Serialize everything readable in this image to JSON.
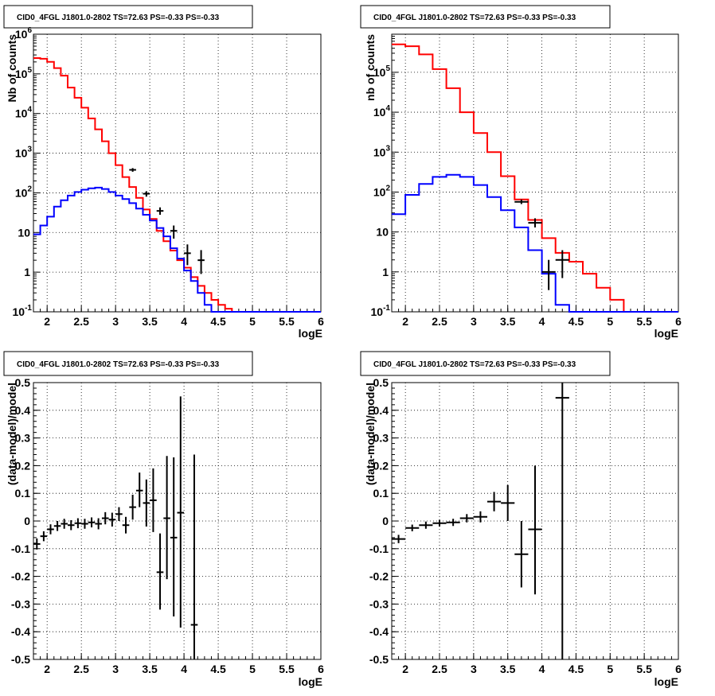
{
  "chart_data": [
    {
      "type": "line",
      "panel": "top-left",
      "title": "CID0_4FGL J1801.0-2802 TS=72.63 PS=-0.33 PS=-0.33",
      "xlabel": "logE",
      "ylabel": "Nb of counts",
      "xlim": [
        1.8,
        6.0
      ],
      "ylim": [
        0.1,
        1000000
      ],
      "yscale": "log",
      "grid": true,
      "xticks": [
        "2",
        "2.5",
        "3",
        "3.5",
        "4",
        "4.5",
        "5",
        "5.5",
        "6"
      ],
      "yticks": [
        {
          "base": "10",
          "exp": "-1",
          "value": 0.1
        },
        {
          "base": "1",
          "exp": "",
          "value": 1
        },
        {
          "base": "10",
          "exp": "",
          "value": 10
        },
        {
          "base": "10",
          "exp": "2",
          "value": 100
        },
        {
          "base": "10",
          "exp": "3",
          "value": 1000
        },
        {
          "base": "10",
          "exp": "4",
          "value": 10000
        },
        {
          "base": "10",
          "exp": "5",
          "value": 100000
        },
        {
          "base": "10",
          "exp": "6",
          "value": 1000000
        }
      ],
      "bin_edges": [
        1.8,
        1.9,
        2.0,
        2.1,
        2.2,
        2.3,
        2.4,
        2.5,
        2.6,
        2.7,
        2.8,
        2.9,
        3.0,
        3.1,
        3.2,
        3.3,
        3.4,
        3.5,
        3.6,
        3.7,
        3.8,
        3.9,
        4.0,
        4.1,
        4.2,
        4.3,
        4.4,
        4.5,
        4.6,
        4.7,
        4.8,
        4.9,
        5.0,
        5.1,
        5.2,
        5.3,
        5.4,
        5.5,
        5.6,
        5.7,
        5.8,
        5.9,
        6.0
      ],
      "series": [
        {
          "color": "#ff0000",
          "values": [
            250000,
            240000,
            200000,
            140000,
            90000,
            45000,
            25000,
            14000,
            7500,
            4000,
            2000,
            1000,
            500,
            250,
            140,
            75,
            38,
            22,
            11,
            6,
            3.5,
            2,
            1.3,
            0.75,
            0.45,
            0.3,
            0.2,
            0.15,
            0.12,
            0.1,
            0.1,
            0.1,
            0.1,
            0.1,
            0.1,
            0.1,
            0.1,
            0.1,
            0.1,
            0.1,
            0.1,
            0.1
          ]
        },
        {
          "color": "#0000ff",
          "values": [
            9,
            15,
            25,
            45,
            65,
            85,
            105,
            120,
            130,
            135,
            125,
            105,
            85,
            70,
            55,
            40,
            28,
            20,
            13,
            8,
            4,
            2.2,
            1.1,
            0.6,
            0.3,
            0.15,
            0.1,
            0.1,
            0.1,
            0.1,
            0.1,
            0.1,
            0.1,
            0.1,
            0.1,
            0.1,
            0.1,
            0.1,
            0.1,
            0.1,
            0.1,
            0.1
          ]
        }
      ],
      "points": [
        {
          "x": 3.25,
          "xerr": 0.05,
          "y": 380,
          "ylo": 340,
          "yhi": 420
        },
        {
          "x": 3.45,
          "xerr": 0.05,
          "y": 95,
          "ylo": 80,
          "yhi": 110
        },
        {
          "x": 3.65,
          "xerr": 0.05,
          "y": 35,
          "ylo": 28,
          "yhi": 43
        },
        {
          "x": 3.85,
          "xerr": 0.05,
          "y": 11,
          "ylo": 7,
          "yhi": 15
        },
        {
          "x": 4.05,
          "xerr": 0.05,
          "y": 3,
          "ylo": 1.5,
          "yhi": 5
        },
        {
          "x": 4.25,
          "xerr": 0.05,
          "y": 2,
          "ylo": 0.9,
          "yhi": 3.6
        }
      ]
    },
    {
      "type": "line",
      "panel": "top-right",
      "title": "CID0_4FGL J1801.0-2802 TS=72.63 PS=-0.33 PS=-0.33",
      "xlabel": "logE",
      "ylabel": "nb of counts",
      "xlim": [
        1.8,
        6.0
      ],
      "ylim": [
        0.1,
        900000
      ],
      "yscale": "log",
      "grid": true,
      "xticks": [
        "2",
        "2.5",
        "3",
        "3.5",
        "4",
        "4.5",
        "5",
        "5.5",
        "6"
      ],
      "yticks": [
        {
          "base": "10",
          "exp": "-1",
          "value": 0.1
        },
        {
          "base": "1",
          "exp": "",
          "value": 1
        },
        {
          "base": "10",
          "exp": "",
          "value": 10
        },
        {
          "base": "10",
          "exp": "2",
          "value": 100
        },
        {
          "base": "10",
          "exp": "3",
          "value": 1000
        },
        {
          "base": "10",
          "exp": "4",
          "value": 10000
        },
        {
          "base": "10",
          "exp": "5",
          "value": 100000
        }
      ],
      "bin_edges": [
        1.8,
        2.0,
        2.2,
        2.4,
        2.6,
        2.8,
        3.0,
        3.2,
        3.4,
        3.6,
        3.8,
        4.0,
        4.2,
        4.4,
        4.6,
        4.8,
        5.0,
        5.2,
        5.4,
        5.6,
        5.8,
        6.0
      ],
      "series": [
        {
          "color": "#ff0000",
          "values": [
            500000,
            450000,
            280000,
            120000,
            40000,
            10000,
            3000,
            1000,
            250,
            65,
            20,
            7,
            3,
            1.8,
            0.9,
            0.4,
            0.2,
            0.1,
            0.1,
            0.1,
            0.1
          ]
        },
        {
          "color": "#0000ff",
          "values": [
            28,
            85,
            160,
            240,
            270,
            240,
            150,
            75,
            35,
            13,
            3.5,
            0.9,
            0.15,
            0.1,
            0.1,
            0.1,
            0.1,
            0.1,
            0.1,
            0.1,
            0.1
          ]
        }
      ],
      "points": [
        {
          "x": 3.7,
          "xerr": 0.1,
          "y": 57,
          "ylo": 50,
          "yhi": 65
        },
        {
          "x": 3.9,
          "xerr": 0.1,
          "y": 17,
          "ylo": 13,
          "yhi": 22
        },
        {
          "x": 4.1,
          "xerr": 0.1,
          "y": 1.0,
          "ylo": 0.35,
          "yhi": 2.0
        },
        {
          "x": 4.3,
          "xerr": 0.1,
          "y": 2.0,
          "ylo": 0.7,
          "yhi": 3.5
        }
      ]
    },
    {
      "type": "scatter",
      "panel": "bottom-left",
      "title": "CID0_4FGL J1801.0-2802 TS=72.63 PS=-0.33 PS=-0.33",
      "xlabel": "logE",
      "ylabel": "(data-model)/model",
      "xlim": [
        1.8,
        6.0
      ],
      "ylim": [
        -0.5,
        0.5
      ],
      "yscale": "linear",
      "grid": true,
      "xticks": [
        "2",
        "2.5",
        "3",
        "3.5",
        "4",
        "4.5",
        "5",
        "5.5",
        "6"
      ],
      "yticks": [
        {
          "base": "0.5",
          "exp": "",
          "value": 0.5
        },
        {
          "base": "0.4",
          "exp": "",
          "value": 0.4
        },
        {
          "base": "0.3",
          "exp": "",
          "value": 0.3
        },
        {
          "base": "0.2",
          "exp": "",
          "value": 0.2
        },
        {
          "base": "0.1",
          "exp": "",
          "value": 0.1
        },
        {
          "base": "0",
          "exp": "",
          "value": 0
        },
        {
          "base": "-0.1",
          "exp": "",
          "value": -0.1
        },
        {
          "base": "-0.2",
          "exp": "",
          "value": -0.2
        },
        {
          "base": "-0.3",
          "exp": "",
          "value": -0.3
        },
        {
          "base": "-0.4",
          "exp": "",
          "value": -0.4
        },
        {
          "base": "-0.5",
          "exp": "",
          "value": -0.5
        }
      ],
      "points": [
        {
          "x": 1.85,
          "xerr": 0.05,
          "y": -0.083,
          "ylo": -0.103,
          "yhi": -0.063
        },
        {
          "x": 1.95,
          "xerr": 0.05,
          "y": -0.055,
          "ylo": -0.073,
          "yhi": -0.037
        },
        {
          "x": 2.05,
          "xerr": 0.05,
          "y": -0.03,
          "ylo": -0.048,
          "yhi": -0.012
        },
        {
          "x": 2.15,
          "xerr": 0.05,
          "y": -0.018,
          "ylo": -0.036,
          "yhi": 0.0
        },
        {
          "x": 2.25,
          "xerr": 0.05,
          "y": -0.01,
          "ylo": -0.028,
          "yhi": 0.008
        },
        {
          "x": 2.35,
          "xerr": 0.05,
          "y": -0.015,
          "ylo": -0.033,
          "yhi": 0.003
        },
        {
          "x": 2.45,
          "xerr": 0.05,
          "y": -0.008,
          "ylo": -0.026,
          "yhi": 0.01
        },
        {
          "x": 2.55,
          "xerr": 0.05,
          "y": -0.01,
          "ylo": -0.028,
          "yhi": 0.008
        },
        {
          "x": 2.65,
          "xerr": 0.05,
          "y": -0.005,
          "ylo": -0.023,
          "yhi": 0.013
        },
        {
          "x": 2.75,
          "xerr": 0.05,
          "y": -0.01,
          "ylo": -0.03,
          "yhi": 0.01
        },
        {
          "x": 2.85,
          "xerr": 0.05,
          "y": 0.01,
          "ylo": -0.012,
          "yhi": 0.032
        },
        {
          "x": 2.95,
          "xerr": 0.05,
          "y": 0.005,
          "ylo": -0.02,
          "yhi": 0.03
        },
        {
          "x": 3.05,
          "xerr": 0.05,
          "y": 0.025,
          "ylo": 0.0,
          "yhi": 0.05
        },
        {
          "x": 3.15,
          "xerr": 0.05,
          "y": -0.015,
          "ylo": -0.045,
          "yhi": 0.015
        },
        {
          "x": 3.25,
          "xerr": 0.05,
          "y": 0.05,
          "ylo": 0.005,
          "yhi": 0.095
        },
        {
          "x": 3.35,
          "xerr": 0.05,
          "y": 0.11,
          "ylo": 0.05,
          "yhi": 0.175
        },
        {
          "x": 3.45,
          "xerr": 0.05,
          "y": 0.065,
          "ylo": -0.02,
          "yhi": 0.15
        },
        {
          "x": 3.55,
          "xerr": 0.05,
          "y": 0.075,
          "ylo": -0.04,
          "yhi": 0.19
        },
        {
          "x": 3.65,
          "xerr": 0.05,
          "y": -0.185,
          "ylo": -0.32,
          "yhi": -0.045
        },
        {
          "x": 3.75,
          "xerr": 0.05,
          "y": 0.01,
          "ylo": -0.21,
          "yhi": 0.235
        },
        {
          "x": 3.85,
          "xerr": 0.05,
          "y": -0.06,
          "ylo": -0.345,
          "yhi": 0.23
        },
        {
          "x": 3.95,
          "xerr": 0.05,
          "y": 0.03,
          "ylo": -0.385,
          "yhi": 0.45
        },
        {
          "x": 4.15,
          "xerr": 0.05,
          "y": -0.375,
          "ylo": -0.5,
          "yhi": 0.24
        }
      ]
    },
    {
      "type": "scatter",
      "panel": "bottom-right",
      "title": "CID0_4FGL J1801.0-2802 TS=72.63 PS=-0.33 PS=-0.33",
      "xlabel": "logE",
      "ylabel": "(data-model)/model",
      "xlim": [
        1.8,
        6.0
      ],
      "ylim": [
        -0.5,
        0.5
      ],
      "yscale": "linear",
      "grid": true,
      "xticks": [
        "2",
        "2.5",
        "3",
        "3.5",
        "4",
        "4.5",
        "5",
        "5.5",
        "6"
      ],
      "yticks": [
        {
          "base": "0.5",
          "exp": "",
          "value": 0.5
        },
        {
          "base": "0.4",
          "exp": "",
          "value": 0.4
        },
        {
          "base": "0.3",
          "exp": "",
          "value": 0.3
        },
        {
          "base": "0.2",
          "exp": "",
          "value": 0.2
        },
        {
          "base": "0.1",
          "exp": "",
          "value": 0.1
        },
        {
          "base": "0",
          "exp": "",
          "value": 0
        },
        {
          "base": "-0.1",
          "exp": "",
          "value": -0.1
        },
        {
          "base": "-0.2",
          "exp": "",
          "value": -0.2
        },
        {
          "base": "-0.3",
          "exp": "",
          "value": -0.3
        },
        {
          "base": "-0.4",
          "exp": "",
          "value": -0.4
        },
        {
          "base": "-0.5",
          "exp": "",
          "value": -0.5
        }
      ],
      "points": [
        {
          "x": 1.9,
          "xerr": 0.1,
          "y": -0.065,
          "ylo": -0.08,
          "yhi": -0.05
        },
        {
          "x": 2.1,
          "xerr": 0.1,
          "y": -0.025,
          "ylo": -0.037,
          "yhi": -0.013
        },
        {
          "x": 2.3,
          "xerr": 0.1,
          "y": -0.015,
          "ylo": -0.028,
          "yhi": -0.002
        },
        {
          "x": 2.5,
          "xerr": 0.1,
          "y": -0.008,
          "ylo": -0.02,
          "yhi": 0.004
        },
        {
          "x": 2.7,
          "xerr": 0.1,
          "y": -0.005,
          "ylo": -0.018,
          "yhi": 0.008
        },
        {
          "x": 2.9,
          "xerr": 0.1,
          "y": 0.01,
          "ylo": -0.005,
          "yhi": 0.025
        },
        {
          "x": 3.1,
          "xerr": 0.1,
          "y": 0.015,
          "ylo": -0.005,
          "yhi": 0.035
        },
        {
          "x": 3.3,
          "xerr": 0.1,
          "y": 0.07,
          "ylo": 0.035,
          "yhi": 0.105
        },
        {
          "x": 3.5,
          "xerr": 0.1,
          "y": 0.065,
          "ylo": 0.0,
          "yhi": 0.13
        },
        {
          "x": 3.7,
          "xerr": 0.1,
          "y": -0.12,
          "ylo": -0.24,
          "yhi": 0.0
        },
        {
          "x": 3.9,
          "xerr": 0.1,
          "y": -0.03,
          "ylo": -0.265,
          "yhi": 0.2
        },
        {
          "x": 4.3,
          "xerr": 0.1,
          "y": 0.445,
          "ylo": -0.5,
          "yhi": 0.5
        }
      ]
    }
  ]
}
